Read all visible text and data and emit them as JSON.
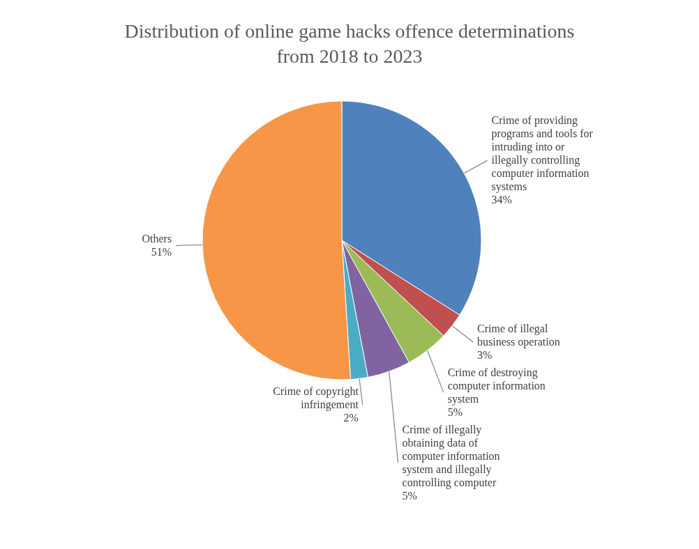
{
  "chart_data": {
    "type": "pie",
    "title": "Distribution of online game hacks offence determinations from 2018 to 2023",
    "categories": [
      "Crime of providing programs and tools for intruding into or illegally controlling computer information systems",
      "Crime of illegal business operation",
      "Crime of destroying computer information system",
      "Crime of illegally obtaining data of computer information system and illegally controlling computer",
      "Crime of copyright infringement",
      "Others"
    ],
    "values": [
      34,
      3,
      5,
      5,
      2,
      51
    ],
    "value_labels": [
      "34%",
      "3%",
      "5%",
      "5%",
      "2%",
      "51%"
    ],
    "colors": [
      "#4f81bd",
      "#c0504d",
      "#9bbb59",
      "#8064a2",
      "#4bacc6",
      "#f79646"
    ]
  }
}
